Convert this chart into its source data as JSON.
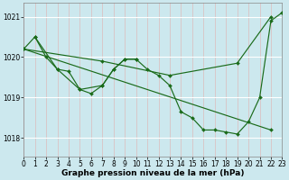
{
  "bg_color": "#cce8ee",
  "grid_color": "#aaddcc",
  "line_color": "#1a6b1a",
  "title_label": "Graphe pression niveau de la mer (hPa)",
  "xlim": [
    0,
    23
  ],
  "ylim": [
    1017.55,
    1021.35
  ],
  "yticks": [
    1018,
    1019,
    1020,
    1021
  ],
  "xticks": [
    0,
    1,
    2,
    3,
    4,
    5,
    6,
    7,
    8,
    9,
    10,
    11,
    12,
    13,
    14,
    15,
    16,
    17,
    18,
    19,
    20,
    21,
    22,
    23
  ],
  "line1_x": [
    0,
    1,
    2,
    3,
    4,
    5,
    6,
    7,
    8,
    9,
    10,
    11,
    12,
    13,
    14,
    15,
    16,
    17,
    18,
    19,
    20,
    21,
    22,
    23
  ],
  "line1_y": [
    1020.2,
    1020.5,
    1020.0,
    1019.7,
    1019.65,
    1019.2,
    1019.1,
    1019.3,
    1019.7,
    1019.95,
    1019.95,
    1019.7,
    1019.55,
    1019.3,
    1018.65,
    1018.5,
    1018.2,
    1018.2,
    1018.15,
    1018.1,
    1018.4,
    1019.0,
    1020.9,
    1021.1
  ],
  "line2_x": [
    0,
    22
  ],
  "line2_y": [
    1020.2,
    1018.2
  ],
  "line3_x": [
    0,
    7,
    13,
    19,
    22
  ],
  "line3_y": [
    1020.2,
    1019.9,
    1019.55,
    1019.85,
    1021.0
  ],
  "line4_x": [
    1,
    3,
    5,
    7,
    8,
    9,
    10
  ],
  "line4_y": [
    1020.5,
    1019.7,
    1019.2,
    1019.3,
    1019.7,
    1019.95,
    1019.95
  ],
  "font_tick": 5.5,
  "font_label": 6.5,
  "lw": 0.85,
  "ms": 2.0
}
